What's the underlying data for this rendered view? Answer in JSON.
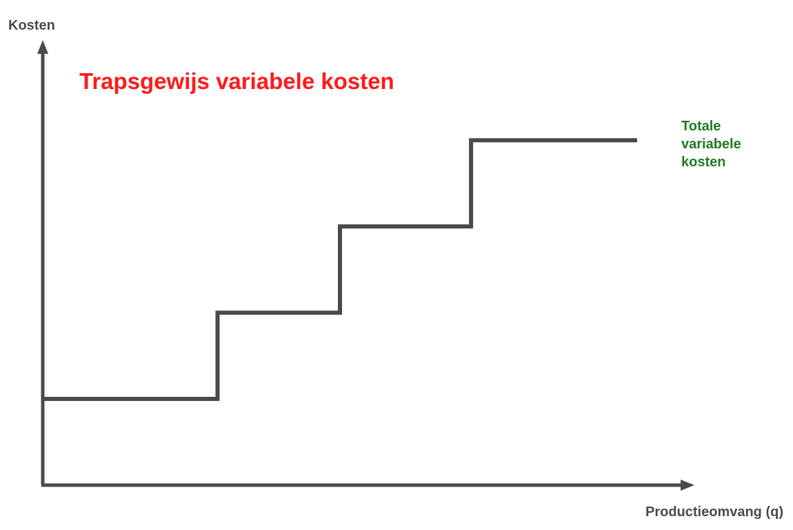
{
  "chart_data": {
    "type": "line",
    "title": "Trapsgewijs variabele kosten",
    "xlabel": "Productieomvang (q)",
    "ylabel": "Kosten",
    "step": true,
    "grid": false,
    "series": [
      {
        "name_lines": [
          "Totale",
          "variabele",
          "kosten"
        ],
        "color": "#4a4a4a",
        "points": [
          {
            "x": 0,
            "y": 1
          },
          {
            "x": 1,
            "y": 1
          },
          {
            "x": 1,
            "y": 2
          },
          {
            "x": 1.7,
            "y": 2
          },
          {
            "x": 1.7,
            "y": 3
          },
          {
            "x": 2.45,
            "y": 3
          },
          {
            "x": 2.45,
            "y": 4
          },
          {
            "x": 3.4,
            "y": 4
          }
        ]
      }
    ],
    "xlim": [
      0,
      3.7
    ],
    "ylim": [
      0,
      5.05
    ]
  },
  "colors": {
    "title": "#ff1a1a",
    "series_label": "#1f7a1f",
    "axes": "#4a4a4a"
  }
}
